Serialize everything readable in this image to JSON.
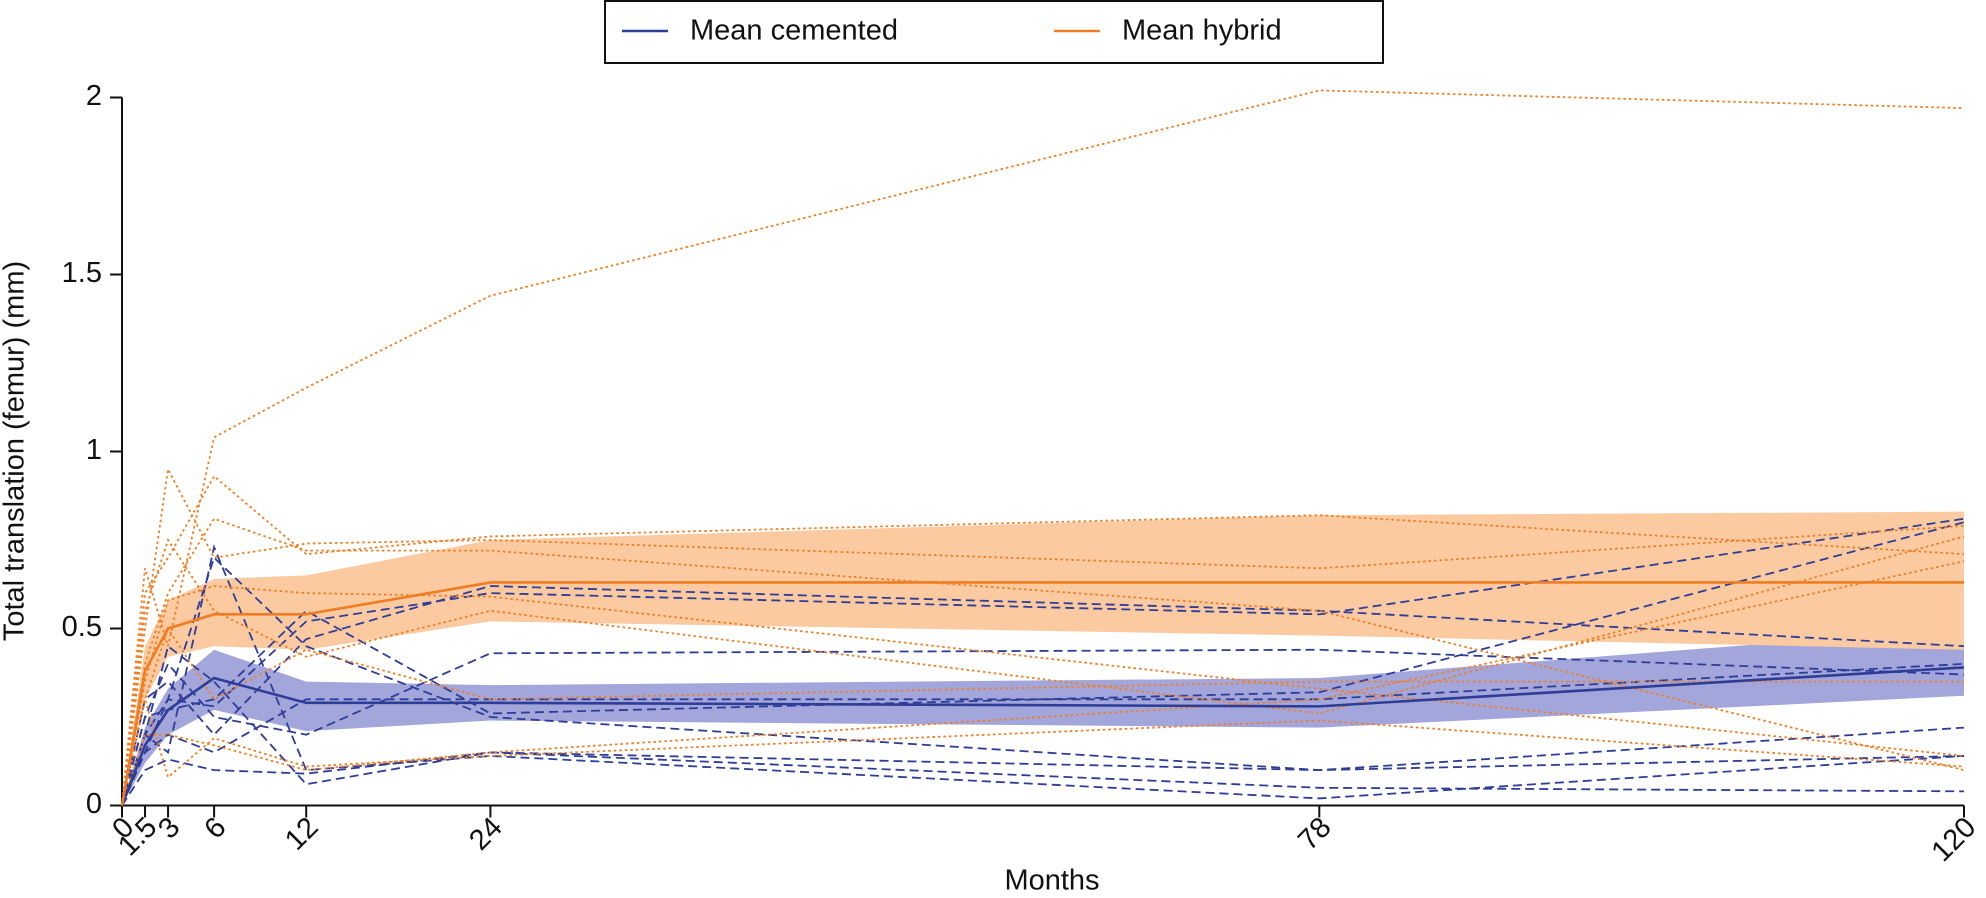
{
  "chart_data": {
    "type": "line",
    "x_label": "Months",
    "y_label": "Total translation (femur) (mm)",
    "x": [
      0,
      1.5,
      3,
      6,
      12,
      24,
      78,
      120
    ],
    "xlim": [
      0,
      120
    ],
    "xticks": [
      0,
      1.5,
      3,
      6,
      12,
      24,
      78,
      120
    ],
    "ylim": [
      0,
      2
    ],
    "yticks": [
      0,
      0.5,
      1,
      1.5,
      2
    ],
    "series": [
      {
        "name": "Mean cemented",
        "color": "#2e3d98",
        "style": "solid",
        "band_color": "#a3a6db",
        "values": [
          0,
          0.17,
          0.27,
          0.36,
          0.29,
          0.29,
          0.28,
          0.39
        ],
        "lower": [
          0,
          0.12,
          0.2,
          0.27,
          0.21,
          0.24,
          0.22,
          0.31
        ],
        "upper": [
          0,
          0.22,
          0.33,
          0.44,
          0.35,
          0.34,
          0.36,
          0.5
        ]
      },
      {
        "name": "Mean hybrid",
        "color": "#f07d22",
        "style": "solid",
        "band_color": "#fbcaa1",
        "values": [
          0,
          0.38,
          0.5,
          0.54,
          0.54,
          0.63,
          0.63,
          0.63
        ],
        "lower": [
          0,
          0.3,
          0.42,
          0.45,
          0.44,
          0.52,
          0.48,
          0.44
        ],
        "upper": [
          0,
          0.45,
          0.58,
          0.64,
          0.65,
          0.75,
          0.82,
          0.83
        ]
      },
      {
        "color": "#2e3d98",
        "style": "dashed",
        "values": [
          0,
          0.15,
          0.3,
          0.7,
          0.45,
          0.25,
          0.1,
          0.14
        ]
      },
      {
        "color": "#2e3d98",
        "style": "dashed",
        "values": [
          0,
          0.2,
          0.15,
          0.73,
          0.1,
          0.14,
          0.02,
          0.14
        ]
      },
      {
        "color": "#2e3d98",
        "style": "dashed",
        "values": [
          0,
          0.1,
          0.13,
          0.1,
          0.09,
          0.15,
          0.05,
          0.04
        ]
      },
      {
        "color": "#2e3d98",
        "style": "dashed",
        "values": [
          0,
          0.25,
          0.27,
          0.3,
          0.55,
          0.26,
          0.32,
          0.8
        ]
      },
      {
        "color": "#2e3d98",
        "style": "dashed",
        "values": [
          0,
          0.3,
          0.35,
          0.2,
          0.47,
          0.62,
          0.55,
          0.45
        ]
      },
      {
        "color": "#2e3d98",
        "style": "dashed",
        "values": [
          0,
          0.2,
          0.45,
          0.35,
          0.06,
          0.15,
          0.1,
          0.22
        ]
      },
      {
        "color": "#2e3d98",
        "style": "dashed",
        "values": [
          0,
          0.25,
          0.4,
          0.25,
          0.2,
          0.43,
          0.44,
          0.37
        ]
      },
      {
        "color": "#2e3d98",
        "style": "dashed",
        "values": [
          0,
          0.2,
          0.3,
          0.28,
          0.52,
          0.6,
          0.54,
          0.81
        ]
      },
      {
        "color": "#2e3d98",
        "style": "dashed",
        "values": [
          0,
          0.15,
          0.2,
          0.15,
          0.3,
          0.3,
          0.3,
          0.4
        ]
      },
      {
        "color": "#f07d22",
        "style": "dotted",
        "values": [
          0,
          0.5,
          0.95,
          0.7,
          0.74,
          0.75,
          0.67,
          0.79
        ]
      },
      {
        "color": "#f07d22",
        "style": "dotted",
        "values": [
          0,
          0.6,
          0.7,
          0.93,
          0.71,
          0.76,
          0.82,
          0.71
        ]
      },
      {
        "color": "#f07d22",
        "style": "dotted",
        "values": [
          0,
          0.67,
          0.45,
          1.04,
          1.18,
          1.44,
          2.02,
          1.97
        ]
      },
      {
        "color": "#f07d22",
        "style": "dotted",
        "values": [
          0,
          0.4,
          0.6,
          0.81,
          0.72,
          0.72,
          0.55,
          0.1
        ]
      },
      {
        "color": "#f07d22",
        "style": "dotted",
        "values": [
          0,
          0.3,
          0.08,
          0.19,
          0.11,
          0.14,
          0.24,
          0.11
        ]
      },
      {
        "color": "#f07d22",
        "style": "dotted",
        "values": [
          0,
          0.55,
          0.75,
          0.55,
          0.42,
          0.55,
          0.26,
          0.76
        ]
      },
      {
        "color": "#f07d22",
        "style": "dotted",
        "values": [
          0,
          0.3,
          0.5,
          0.3,
          0.44,
          0.3,
          0.35,
          0.35
        ]
      },
      {
        "color": "#f07d22",
        "style": "dotted",
        "values": [
          0,
          0.35,
          0.58,
          0.62,
          0.6,
          0.59,
          0.33,
          0.14
        ]
      },
      {
        "color": "#f07d22",
        "style": "dotted",
        "values": [
          0,
          0.2,
          0.2,
          0.17,
          0.1,
          0.15,
          0.3,
          0.69
        ]
      }
    ]
  }
}
